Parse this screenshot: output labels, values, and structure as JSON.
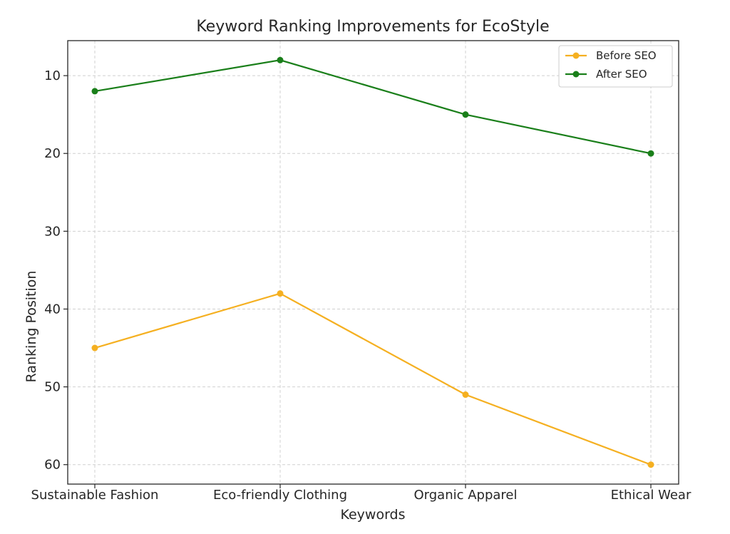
{
  "chart_data": {
    "type": "line",
    "title": "Keyword Ranking Improvements for EcoStyle",
    "xlabel": "Keywords",
    "ylabel": "Ranking Position",
    "categories": [
      "Sustainable Fashion",
      "Eco-friendly Clothing",
      "Organic Apparel",
      "Ethical Wear"
    ],
    "y_inverted": true,
    "ylim": [
      62.5,
      5.5
    ],
    "yticks": [
      10,
      20,
      30,
      40,
      50,
      60
    ],
    "grid": true,
    "legend_position": "top-right",
    "series": [
      {
        "name": "Before SEO",
        "color": "#f5b021",
        "values": [
          45,
          38,
          51,
          60
        ]
      },
      {
        "name": "After SEO",
        "color": "#1a7f1a",
        "values": [
          12,
          8,
          15,
          20
        ]
      }
    ]
  }
}
